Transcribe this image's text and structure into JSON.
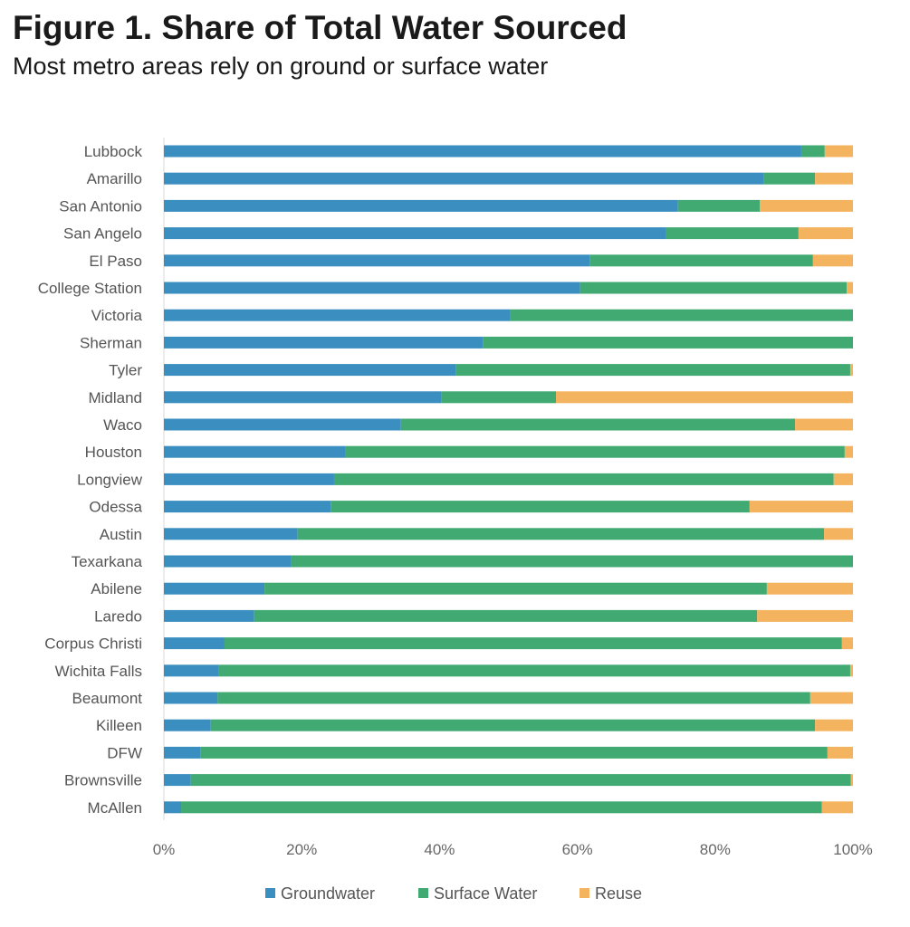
{
  "chart_data": {
    "type": "bar",
    "orientation": "horizontal",
    "stacked": true,
    "title": "Figure 1. Share of Total Water Sourced",
    "subtitle": "Most metro areas rely on ground or surface water",
    "xlim": [
      0,
      100
    ],
    "xticks": [
      "0%",
      "20%",
      "40%",
      "60%",
      "80%",
      "100%"
    ],
    "categories": [
      "Lubbock",
      "Amarillo",
      "San Antonio",
      "San Angelo",
      "El Paso",
      "College Station",
      "Victoria",
      "Sherman",
      "Tyler",
      "Midland",
      "Waco",
      "Houston",
      "Longview",
      "Odessa",
      "Austin",
      "Texarkana",
      "Abilene",
      "Laredo",
      "Corpus Christi",
      "Wichita Falls",
      "Beaumont",
      "Killeen",
      "DFW",
      "Brownsville",
      "McAllen"
    ],
    "series": [
      {
        "name": "Groundwater",
        "color": "#3a8fc0",
        "values": [
          92.5,
          87.0,
          74.6,
          72.8,
          61.8,
          60.4,
          50.2,
          46.3,
          42.4,
          40.3,
          34.4,
          26.4,
          24.7,
          24.2,
          19.4,
          18.4,
          14.6,
          13.1,
          8.8,
          8.0,
          7.8,
          6.8,
          5.3,
          3.9,
          2.5
        ]
      },
      {
        "name": "Surface Water",
        "color": "#40aa72",
        "values": [
          3.4,
          7.5,
          11.9,
          19.3,
          32.4,
          38.7,
          49.8,
          53.7,
          57.2,
          16.6,
          57.2,
          72.4,
          72.5,
          60.8,
          76.4,
          81.6,
          72.9,
          73.0,
          89.6,
          91.6,
          86.0,
          87.7,
          91.0,
          95.8,
          93.0
        ]
      },
      {
        "name": "Reuse",
        "color": "#f4b35e",
        "values": [
          4.1,
          5.5,
          13.5,
          7.9,
          5.8,
          0.9,
          0.0,
          0.0,
          0.4,
          43.1,
          8.4,
          1.2,
          2.8,
          15.0,
          4.2,
          0.0,
          12.5,
          13.9,
          1.6,
          0.4,
          6.2,
          5.5,
          3.7,
          0.3,
          4.5
        ]
      }
    ],
    "legend": "bottom"
  }
}
